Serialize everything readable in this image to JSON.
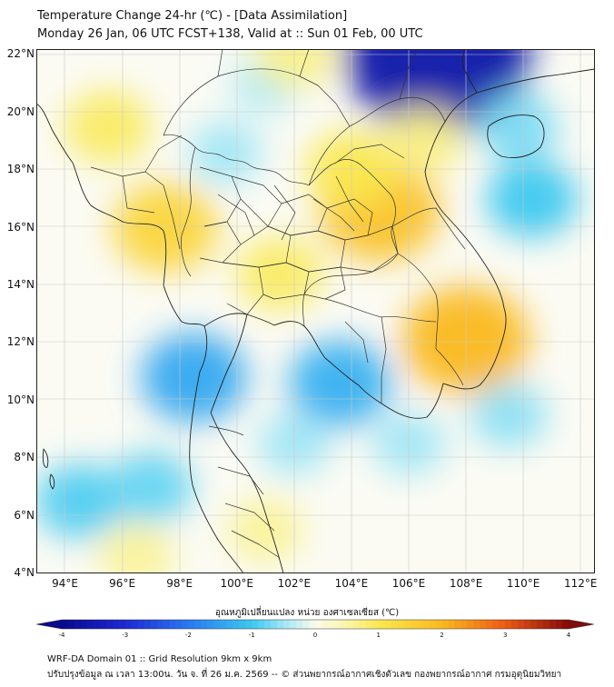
{
  "title": "Temperature Change 24-hr (℃) - [Data Assimilation]",
  "subtitle": "Monday 26 Jan, 06 UTC FCST+138, Valid at :: Sun 01 Feb, 00 UTC",
  "lat_labels": [
    "22°N",
    "20°N",
    "18°N",
    "16°N",
    "14°N",
    "12°N",
    "10°N",
    "8°N",
    "6°N",
    "4°N"
  ],
  "lon_labels": [
    "94°E",
    "96°E",
    "98°E",
    "100°E",
    "102°E",
    "104°E",
    "106°E",
    "108°E",
    "110°E",
    "112°E"
  ],
  "extent": {
    "lon_min": 93,
    "lon_max": 112.5,
    "lat_min": 4,
    "lat_max": 22.2
  },
  "colorbar": {
    "label": "อุณหภูมิเปลี่ยนแปลง หน่วย องศาเซลเซียส (℃)",
    "min": -4,
    "max": 4,
    "ticks": [
      "-4",
      "-3",
      "-2",
      "-1",
      "0",
      "1",
      "2",
      "3",
      "4"
    ]
  },
  "footer": {
    "line1": "WRF-DA Domain 01 :: Grid Resolution 9km x 9km",
    "line2": "ปรับปรุงข้อมูล ณ เวลา 13:00น. วัน จ. ที่ 26 ม.ค. 2569 -- © ส่วนพยากรณ์อากาศเชิงตัวเลข กองพยากรณ์อากาศ กรมอุตุนิยมวิทยา"
  },
  "anomalies": [
    {
      "name": "warm-northeast-thailand",
      "lon": 105.0,
      "lat": 16.6,
      "value": 1.8
    },
    {
      "name": "warm-south-vietnam",
      "lon": 108.0,
      "lat": 12.1,
      "value": 2.0
    },
    {
      "name": "warm-myanmar-west",
      "lon": 97.5,
      "lat": 16.0,
      "value": 1.4
    },
    {
      "name": "warm-central-thailand",
      "lon": 101.5,
      "lat": 14.4,
      "value": 0.9
    },
    {
      "name": "warm-laos-north",
      "lon": 104.0,
      "lat": 18.0,
      "value": 1.0
    },
    {
      "name": "warm-myanmar-north",
      "lon": 95.5,
      "lat": 19.5,
      "value": 0.9
    },
    {
      "name": "cold-gulf-of-tonkin",
      "lon": 107.0,
      "lat": 22.0,
      "value": -3.6
    },
    {
      "name": "cold-andaman",
      "lon": 98.5,
      "lat": 10.8,
      "value": -1.4
    },
    {
      "name": "cold-gulf-thailand",
      "lon": 103.6,
      "lat": 10.6,
      "value": -1.3
    },
    {
      "name": "cold-south-china-sea",
      "lon": 110.3,
      "lat": 17.0,
      "value": -1.0
    },
    {
      "name": "cold-east-sea",
      "lon": 109.5,
      "lat": 9.5,
      "value": -0.6
    },
    {
      "name": "cold-andaman-south",
      "lon": 94.5,
      "lat": 6.5,
      "value": -0.9
    },
    {
      "name": "cold-malay-west",
      "lon": 97.0,
      "lat": 7.0,
      "value": -0.8
    },
    {
      "name": "cold-hainan",
      "lon": 109.8,
      "lat": 19.5,
      "value": -0.7
    },
    {
      "name": "warm-malay",
      "lon": 101.0,
      "lat": 5.5,
      "value": 0.6
    },
    {
      "name": "warm-sumatra",
      "lon": 96.5,
      "lat": 4.6,
      "value": 0.6
    },
    {
      "name": "cold-myanmar-inner",
      "lon": 99.6,
      "lat": 18.6,
      "value": -0.5
    },
    {
      "name": "cold-yunnan",
      "lon": 101.0,
      "lat": 21.0,
      "value": -0.4
    },
    {
      "name": "warm-yunnan-north",
      "lon": 102.0,
      "lat": 22.0,
      "value": 0.7
    },
    {
      "name": "cold-cambodia-se",
      "lon": 106.0,
      "lat": 8.5,
      "value": -0.5
    },
    {
      "name": "warm-vietnam-north",
      "lon": 106.5,
      "lat": 19.0,
      "value": 0.7
    },
    {
      "name": "cold-gulf-lower",
      "lon": 102.0,
      "lat": 8.5,
      "value": -0.5
    }
  ]
}
